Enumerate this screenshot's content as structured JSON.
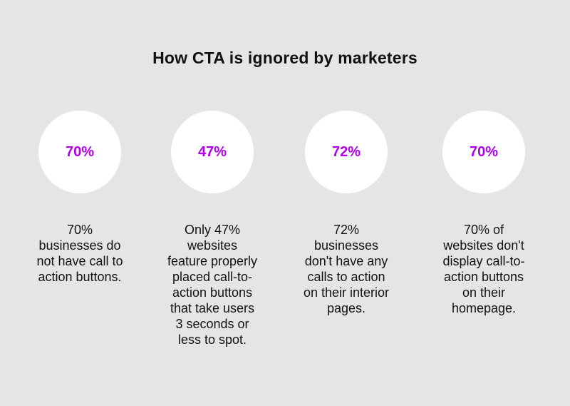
{
  "title": "How CTA is ignored by marketers",
  "accent_color": "#b000e8",
  "stats": [
    {
      "percent": "70%",
      "description": "70%\nbusinesses do\nnot have call to\naction buttons."
    },
    {
      "percent": "47%",
      "description": "Only 47%\nwebsites\nfeature properly\nplaced call-to-\naction buttons\nthat take users\n3 seconds or\nless to spot."
    },
    {
      "percent": "72%",
      "description": "72%\nbusinesses\ndon't have any\ncalls to action\non their interior\npages."
    },
    {
      "percent": "70%",
      "description": "70% of\nwebsites don't\ndisplay call-to-\naction buttons\non their\nhomepage."
    }
  ]
}
